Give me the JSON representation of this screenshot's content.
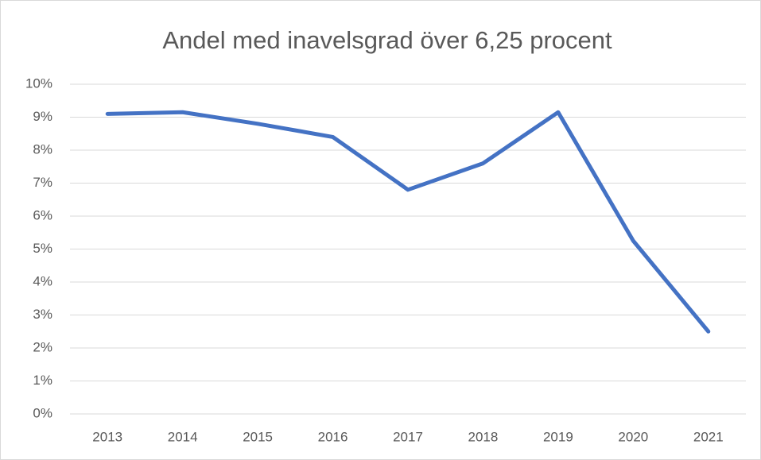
{
  "chart_data": {
    "type": "line",
    "title": "Andel med inavelsgrad över 6,25 procent",
    "categories": [
      "2013",
      "2014",
      "2015",
      "2016",
      "2017",
      "2018",
      "2019",
      "2020",
      "2021"
    ],
    "values": [
      9.1,
      9.15,
      8.8,
      8.4,
      6.8,
      7.6,
      9.15,
      5.25,
      2.5
    ],
    "color": "#4472c4",
    "ylim": [
      0,
      10
    ],
    "yticks": [
      {
        "value": 0,
        "label": "0%"
      },
      {
        "value": 1,
        "label": "1%"
      },
      {
        "value": 2,
        "label": "2%"
      },
      {
        "value": 3,
        "label": "3%"
      },
      {
        "value": 4,
        "label": "4%"
      },
      {
        "value": 5,
        "label": "5%"
      },
      {
        "value": 6,
        "label": "6%"
      },
      {
        "value": 7,
        "label": "7%"
      },
      {
        "value": 8,
        "label": "8%"
      },
      {
        "value": 9,
        "label": "9%"
      },
      {
        "value": 10,
        "label": "10%"
      }
    ],
    "grid": true
  }
}
